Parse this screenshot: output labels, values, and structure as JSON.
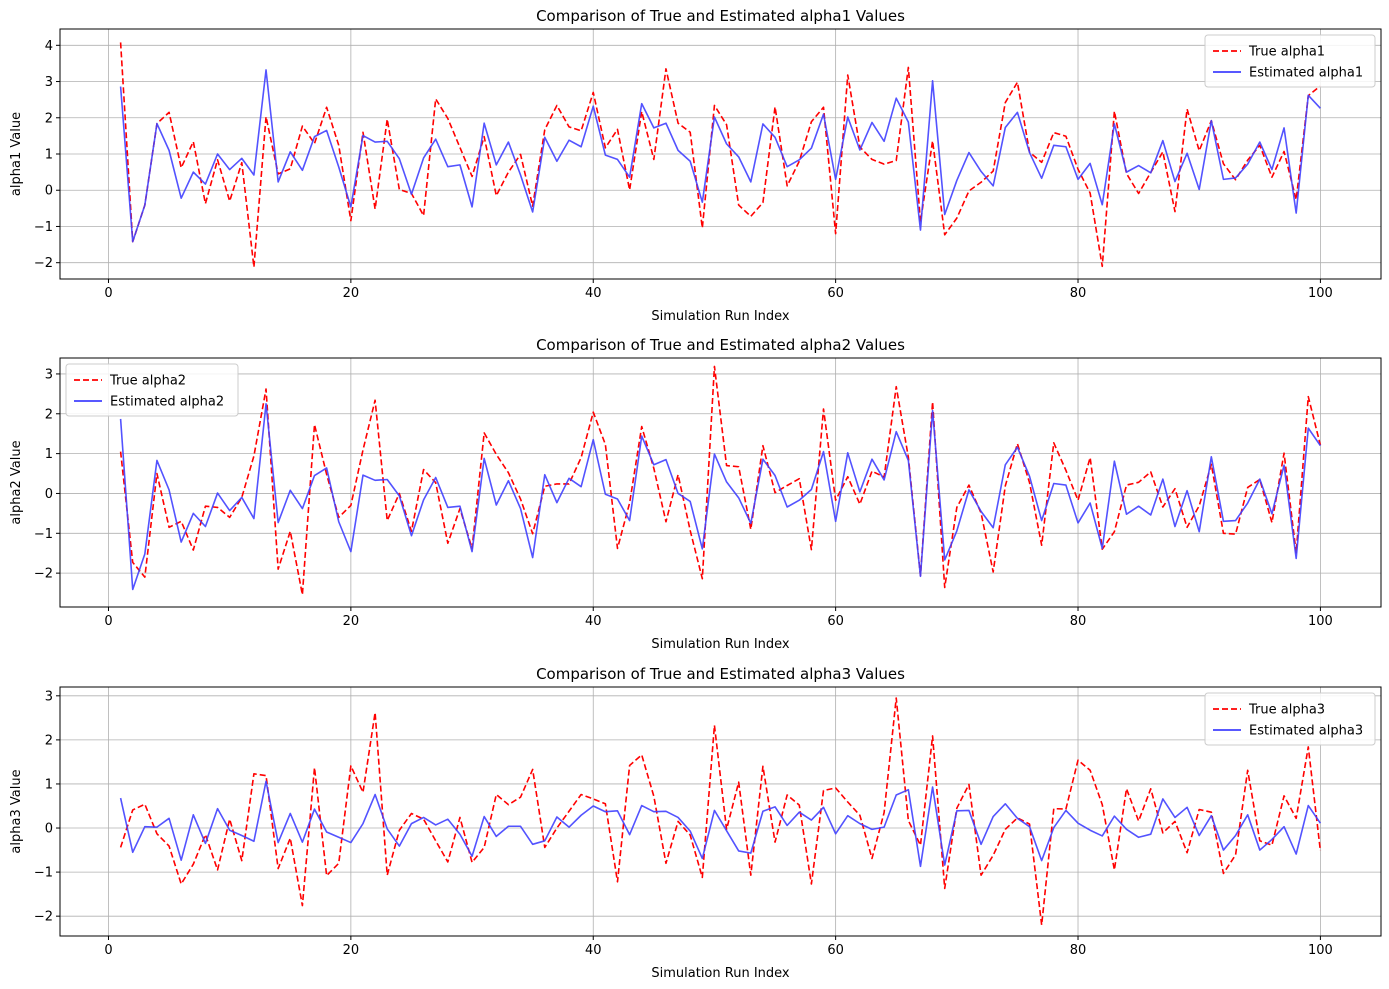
{
  "colors": {
    "true_series": "#ff0000",
    "estimated_series": "#4040ff",
    "grid": "#b0b0b0"
  },
  "chart_data": [
    {
      "type": "line",
      "title": "Comparison of True and Estimated alpha1 Values",
      "xlabel": "Simulation Run Index",
      "ylabel": "alpha1 Value",
      "xlim": [
        -4,
        105
      ],
      "ylim": [
        -2.45,
        4.45
      ],
      "xticks": [
        0,
        20,
        40,
        60,
        80,
        100
      ],
      "yticks": [
        -2,
        -1,
        0,
        1,
        2,
        3,
        4
      ],
      "grid": true,
      "legend_position": "top-right",
      "series": [
        {
          "name": "True alpha1",
          "style": "dashed",
          "color": "#ff0000",
          "values": [
            4.08,
            -1.42,
            -0.41,
            1.84,
            2.15,
            0.62,
            1.34,
            -0.37,
            0.84,
            -0.3,
            0.76,
            -2.12,
            2.03,
            0.45,
            0.59,
            1.77,
            1.29,
            2.29,
            1.24,
            -0.84,
            1.6,
            -0.52,
            1.96,
            0.02,
            -0.09,
            -0.7,
            2.52,
            1.98,
            1.18,
            0.38,
            1.48,
            -0.15,
            0.5,
            0.99,
            -0.44,
            1.67,
            2.34,
            1.75,
            1.64,
            2.7,
            1.17,
            1.68,
            0.01,
            2.17,
            0.85,
            3.35,
            1.85,
            1.6,
            -1.04,
            2.34,
            1.81,
            -0.41,
            -0.72,
            -0.34,
            2.3,
            0.12,
            0.8,
            1.89,
            2.29,
            -1.2,
            3.18,
            1.19,
            0.85,
            0.72,
            0.82,
            3.39,
            -0.87,
            1.36,
            -1.23,
            -0.77,
            -0.02,
            0.22,
            0.53,
            2.42,
            2.98,
            1.05,
            0.77,
            1.59,
            1.49,
            0.58,
            -0.08,
            -2.1,
            2.18,
            0.46,
            -0.09,
            0.49,
            1.06,
            -0.59,
            2.24,
            1.09,
            1.92,
            0.73,
            0.29,
            0.83,
            1.24,
            0.36,
            1.07,
            -0.26,
            2.61,
            2.88
          ]
        },
        {
          "name": "Estimated alpha1",
          "style": "solid",
          "color": "#4040ff",
          "values": [
            2.86,
            -1.42,
            -0.41,
            1.84,
            1.1,
            -0.22,
            0.5,
            0.17,
            1.0,
            0.57,
            0.88,
            0.42,
            3.32,
            0.23,
            1.06,
            0.55,
            1.48,
            1.65,
            0.64,
            -0.46,
            1.51,
            1.33,
            1.35,
            0.87,
            -0.11,
            0.89,
            1.41,
            0.65,
            0.7,
            -0.46,
            1.85,
            0.7,
            1.33,
            0.42,
            -0.6,
            1.46,
            0.8,
            1.38,
            1.2,
            2.32,
            0.97,
            0.85,
            0.36,
            2.39,
            1.72,
            1.85,
            1.1,
            0.8,
            -0.33,
            2.02,
            1.28,
            0.92,
            0.23,
            1.83,
            1.46,
            0.65,
            0.84,
            1.16,
            2.1,
            0.3,
            2.02,
            1.11,
            1.87,
            1.35,
            2.54,
            1.88,
            -1.1,
            3.02,
            -0.67,
            0.27,
            1.04,
            0.52,
            0.12,
            1.73,
            2.15,
            1.04,
            0.33,
            1.24,
            1.2,
            0.3,
            0.74,
            -0.4,
            1.83,
            0.5,
            0.68,
            0.48,
            1.37,
            0.24,
            1.02,
            0.02,
            1.92,
            0.3,
            0.34,
            0.72,
            1.33,
            0.57,
            1.72,
            -0.63,
            2.62,
            2.26
          ]
        }
      ]
    },
    {
      "type": "line",
      "title": "Comparison of True and Estimated alpha2 Values",
      "xlabel": "Simulation Run Index",
      "ylabel": "alpha2 Value",
      "xlim": [
        -4,
        105
      ],
      "ylim": [
        -2.85,
        3.4
      ],
      "xticks": [
        0,
        20,
        40,
        60,
        80,
        100
      ],
      "yticks": [
        -2,
        -1,
        0,
        1,
        2,
        3
      ],
      "grid": true,
      "legend_position": "top-left",
      "series": [
        {
          "name": "True alpha2",
          "style": "dashed",
          "color": "#ff0000",
          "values": [
            1.05,
            -1.73,
            -2.1,
            0.5,
            -0.85,
            -0.7,
            -1.42,
            -0.32,
            -0.35,
            -0.6,
            -0.1,
            0.94,
            2.62,
            -1.9,
            -0.95,
            -2.54,
            1.73,
            0.48,
            -0.6,
            -0.3,
            1.09,
            2.34,
            -0.68,
            0.0,
            -0.95,
            0.6,
            0.27,
            -1.25,
            -0.38,
            -1.38,
            1.52,
            0.98,
            0.52,
            -0.14,
            -1.01,
            0.18,
            0.24,
            0.24,
            0.9,
            2.04,
            1.23,
            -1.38,
            -0.24,
            1.68,
            0.63,
            -0.71,
            0.47,
            -0.93,
            -2.14,
            3.19,
            0.7,
            0.67,
            -0.9,
            1.2,
            0.02,
            0.2,
            0.37,
            -1.41,
            2.12,
            -0.17,
            0.42,
            -0.27,
            0.56,
            0.41,
            2.68,
            0.91,
            -2.06,
            2.3,
            -2.36,
            -0.35,
            0.21,
            -0.49,
            -1.97,
            0.19,
            1.25,
            0.27,
            -1.3,
            1.27,
            0.58,
            -0.17,
            0.9,
            -1.4,
            -0.96,
            0.21,
            0.28,
            0.54,
            -0.34,
            0.12,
            -0.85,
            -0.31,
            0.73,
            -1.0,
            -1.02,
            0.15,
            0.35,
            -0.73,
            1.01,
            -1.49,
            2.43,
            1.21
          ]
        },
        {
          "name": "Estimated alpha2",
          "style": "solid",
          "color": "#4040ff",
          "values": [
            1.87,
            -2.41,
            -1.52,
            0.83,
            0.09,
            -1.22,
            -0.5,
            -0.83,
            0.01,
            -0.43,
            -0.1,
            -0.63,
            2.25,
            -0.73,
            0.08,
            -0.38,
            0.45,
            0.64,
            -0.71,
            -1.46,
            0.46,
            0.33,
            0.35,
            -0.06,
            -1.06,
            -0.16,
            0.4,
            -0.35,
            -0.32,
            -1.46,
            0.88,
            -0.29,
            0.32,
            -0.38,
            -1.61,
            0.47,
            -0.23,
            0.38,
            0.17,
            1.35,
            -0.02,
            -0.14,
            -0.68,
            1.44,
            0.72,
            0.85,
            0.0,
            -0.2,
            -1.39,
            0.99,
            0.29,
            -0.11,
            -0.75,
            0.86,
            0.45,
            -0.34,
            -0.17,
            0.1,
            1.05,
            -0.7,
            1.02,
            0.04,
            0.86,
            0.34,
            1.55,
            0.83,
            -2.08,
            2.08,
            -1.67,
            -0.94,
            0.09,
            -0.45,
            -0.86,
            0.72,
            1.16,
            0.43,
            -0.68,
            0.25,
            0.21,
            -0.74,
            -0.24,
            -1.38,
            0.81,
            -0.52,
            -0.32,
            -0.54,
            0.36,
            -0.83,
            0.07,
            -0.96,
            0.92,
            -0.7,
            -0.68,
            -0.24,
            0.36,
            -0.51,
            0.71,
            -1.63,
            1.64,
            1.2
          ]
        }
      ]
    },
    {
      "type": "line",
      "title": "Comparison of True and Estimated alpha3 Values",
      "xlabel": "Simulation Run Index",
      "ylabel": "alpha3 Value",
      "xlim": [
        -4,
        105
      ],
      "ylim": [
        -2.45,
        3.2
      ],
      "xticks": [
        0,
        20,
        40,
        60,
        80,
        100
      ],
      "yticks": [
        -2,
        -1,
        0,
        1,
        2,
        3
      ],
      "grid": true,
      "legend_position": "top-right",
      "series": [
        {
          "name": "True alpha3",
          "style": "dashed",
          "color": "#ff0000",
          "values": [
            -0.44,
            0.41,
            0.54,
            -0.13,
            -0.41,
            -1.27,
            -0.82,
            -0.15,
            -0.95,
            0.2,
            -0.74,
            1.23,
            1.19,
            -0.92,
            -0.23,
            -1.76,
            1.37,
            -1.08,
            -0.8,
            1.41,
            0.81,
            2.62,
            -1.07,
            -0.05,
            0.33,
            0.2,
            -0.29,
            -0.77,
            0.24,
            -0.78,
            -0.44,
            0.76,
            0.53,
            0.7,
            1.33,
            -0.44,
            0.0,
            0.38,
            0.76,
            0.66,
            0.55,
            -1.22,
            1.42,
            1.66,
            0.72,
            -0.8,
            0.15,
            -0.16,
            -1.12,
            2.33,
            -0.03,
            1.04,
            -1.07,
            1.4,
            -0.32,
            0.75,
            0.52,
            -1.27,
            0.85,
            0.91,
            0.59,
            0.29,
            -0.69,
            0.35,
            2.95,
            0.17,
            -0.39,
            2.09,
            -1.37,
            0.45,
            0.99,
            -1.07,
            -0.62,
            -0.03,
            0.23,
            0.09,
            -2.2,
            0.44,
            0.43,
            1.54,
            1.31,
            0.53,
            -0.95,
            0.89,
            0.16,
            0.89,
            -0.11,
            0.15,
            -0.56,
            0.42,
            0.36,
            -1.03,
            -0.61,
            1.31,
            -0.29,
            -0.39,
            0.73,
            0.22,
            1.84,
            -0.52
          ]
        },
        {
          "name": "Estimated alpha3",
          "style": "solid",
          "color": "#4040ff",
          "values": [
            0.68,
            -0.55,
            0.03,
            0.02,
            0.22,
            -0.73,
            0.3,
            -0.35,
            0.44,
            -0.05,
            -0.17,
            -0.3,
            1.06,
            -0.33,
            0.33,
            -0.32,
            0.43,
            -0.09,
            -0.21,
            -0.33,
            0.1,
            0.76,
            -0.02,
            -0.41,
            0.1,
            0.24,
            0.07,
            0.2,
            -0.14,
            -0.64,
            0.26,
            -0.19,
            0.04,
            0.04,
            -0.37,
            -0.29,
            0.25,
            0.02,
            0.29,
            0.5,
            0.37,
            0.39,
            -0.15,
            0.51,
            0.37,
            0.38,
            0.24,
            -0.07,
            -0.69,
            0.4,
            -0.06,
            -0.52,
            -0.57,
            0.38,
            0.48,
            0.06,
            0.36,
            0.18,
            0.47,
            -0.13,
            0.28,
            0.1,
            -0.03,
            0.02,
            0.75,
            0.87,
            -0.87,
            0.93,
            -0.84,
            0.39,
            0.4,
            -0.37,
            0.26,
            0.55,
            0.22,
            0.03,
            -0.74,
            0.01,
            0.4,
            0.11,
            -0.05,
            -0.18,
            0.27,
            -0.03,
            -0.21,
            -0.14,
            0.66,
            0.24,
            0.47,
            -0.17,
            0.28,
            -0.5,
            -0.17,
            0.3,
            -0.5,
            -0.26,
            0.03,
            -0.59,
            0.51,
            0.11
          ]
        }
      ]
    }
  ]
}
